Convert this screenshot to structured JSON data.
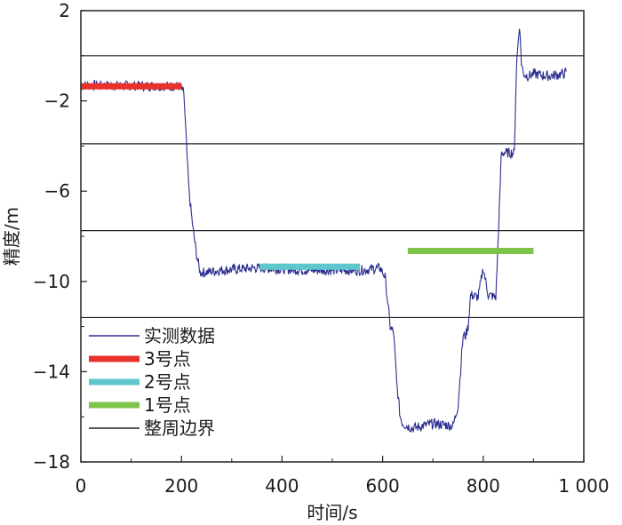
{
  "chart_data": {
    "type": "line",
    "title": "",
    "xlabel": "时间/s",
    "ylabel": "精度/m",
    "xlim": [
      0,
      1000
    ],
    "ylim": [
      -18,
      2
    ],
    "xticks": [
      0,
      200,
      400,
      600,
      800,
      1000
    ],
    "xtick_labels": [
      "0",
      "200",
      "400",
      "600",
      "800",
      "1 000"
    ],
    "yticks": [
      -18,
      -14,
      -10,
      -6,
      -2,
      2
    ],
    "ytick_labels": [
      "−18",
      "−14",
      "−10",
      "−6",
      "−2",
      "2"
    ],
    "grid": false,
    "legend": {
      "placement": "lower-left",
      "entries": [
        {
          "name": "实测数据",
          "color": "#2b2e8f",
          "style": "thin"
        },
        {
          "name": "3号点",
          "color": "#e8322b",
          "style": "thick"
        },
        {
          "name": "2号点",
          "color": "#5ec6cd",
          "style": "thick"
        },
        {
          "name": "1号点",
          "color": "#7ec34a",
          "style": "thick"
        },
        {
          "name": "整周边界",
          "color": "#222222",
          "style": "thin"
        }
      ]
    },
    "series": [
      {
        "name": "实测数据",
        "color": "#2b2e8f",
        "x": [
          0,
          198,
          205,
          210,
          215,
          222,
          230,
          237,
          245,
          280,
          350,
          450,
          520,
          560,
          595,
          605,
          615,
          622,
          628,
          635,
          640,
          648,
          660,
          700,
          740,
          750,
          760,
          765,
          770,
          775,
          790,
          800,
          810,
          825,
          830,
          833,
          836,
          850,
          862,
          866,
          872,
          876,
          880,
          890,
          900,
          930,
          960,
          965
        ],
        "y": [
          -1.3,
          -1.35,
          -1.7,
          -4.0,
          -6.0,
          -7.5,
          -8.8,
          -9.6,
          -9.6,
          -9.5,
          -9.4,
          -9.5,
          -9.5,
          -9.5,
          -9.4,
          -9.8,
          -12.0,
          -12.3,
          -14.5,
          -16.0,
          -16.3,
          -16.4,
          -16.5,
          -16.3,
          -16.4,
          -15.5,
          -12.4,
          -12.4,
          -12.0,
          -10.6,
          -10.7,
          -9.4,
          -10.6,
          -10.7,
          -8.0,
          -6.3,
          -4.3,
          -4.3,
          -4.3,
          -0.5,
          1.4,
          -0.3,
          -0.8,
          -0.9,
          -0.8,
          -0.9,
          -0.8,
          -0.7
        ]
      },
      {
        "name": "3号点",
        "color": "#e8322b",
        "x": [
          0,
          200
        ],
        "y": [
          -1.35,
          -1.35
        ]
      },
      {
        "name": "2号点",
        "color": "#5ec6cd",
        "x": [
          355,
          555
        ],
        "y": [
          -9.35,
          -9.35
        ]
      },
      {
        "name": "1号点",
        "color": "#7ec34a",
        "x": [
          650,
          900
        ],
        "y": [
          -8.65,
          -8.65
        ]
      }
    ],
    "boundaries": {
      "name": "整周边界",
      "color": "#222222",
      "y": [
        0.0,
        -3.9,
        -7.75,
        -11.6
      ]
    }
  }
}
